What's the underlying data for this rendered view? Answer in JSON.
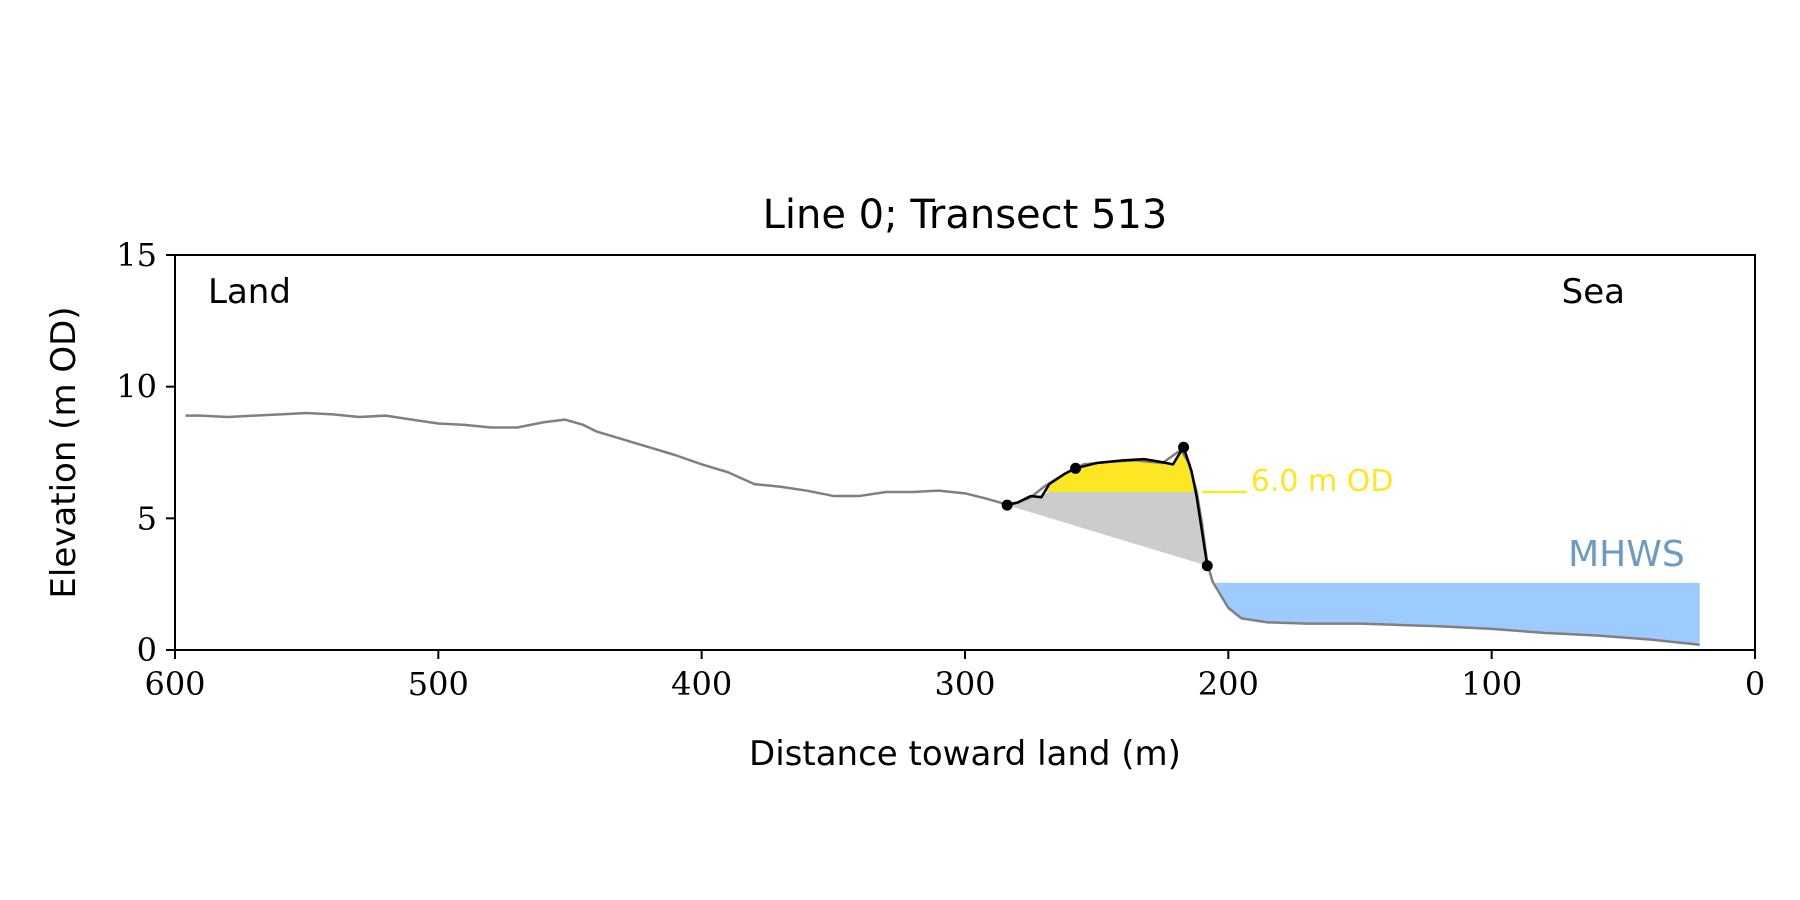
{
  "chart_data": {
    "type": "line",
    "title": "Line 0; Transect 513",
    "xlabel": "Distance toward land (m)",
    "ylabel": "Elevation (m OD)",
    "xlim": [
      600,
      0
    ],
    "ylim": [
      0,
      15
    ],
    "x_ticks": [
      600,
      500,
      400,
      300,
      200,
      100,
      0
    ],
    "y_ticks": [
      0,
      5,
      10,
      15
    ],
    "x_tick_labels": [
      "600",
      "500",
      "400",
      "300",
      "200",
      "100",
      "0"
    ],
    "y_tick_labels": [
      "0",
      "5",
      "10",
      "15"
    ],
    "grid": false,
    "annotations": {
      "land_label": "Land",
      "sea_label": "Sea",
      "threshold_label": "6.0 m OD",
      "mhws_label": "MHWS"
    },
    "threshold_elevation": 6.0,
    "threshold_line_x": [
      210,
      193
    ],
    "mhws": {
      "elevation": 2.55,
      "x_range": [
        205,
        21
      ]
    },
    "colors": {
      "profile": "#808080",
      "dune": "#000000",
      "dune_fill": "#fde725",
      "wedge_fill": "#cccccc",
      "mhws_fill": "#9ecbff",
      "mhws_text": "#6b9ac4",
      "threshold": "#fde725"
    },
    "profile": [
      [
        596,
        8.9
      ],
      [
        590,
        8.9
      ],
      [
        580,
        8.85
      ],
      [
        570,
        8.9
      ],
      [
        560,
        8.95
      ],
      [
        550,
        9.0
      ],
      [
        540,
        8.95
      ],
      [
        530,
        8.85
      ],
      [
        520,
        8.9
      ],
      [
        510,
        8.75
      ],
      [
        500,
        8.6
      ],
      [
        490,
        8.55
      ],
      [
        480,
        8.45
      ],
      [
        470,
        8.45
      ],
      [
        460,
        8.65
      ],
      [
        452,
        8.75
      ],
      [
        445,
        8.55
      ],
      [
        440,
        8.3
      ],
      [
        430,
        8.0
      ],
      [
        420,
        7.7
      ],
      [
        410,
        7.4
      ],
      [
        400,
        7.05
      ],
      [
        390,
        6.75
      ],
      [
        380,
        6.3
      ],
      [
        370,
        6.2
      ],
      [
        360,
        6.05
      ],
      [
        350,
        5.85
      ],
      [
        340,
        5.85
      ],
      [
        330,
        6.0
      ],
      [
        320,
        6.0
      ],
      [
        310,
        6.05
      ],
      [
        300,
        5.95
      ],
      [
        292,
        5.75
      ],
      [
        285,
        5.55
      ],
      [
        280,
        5.6
      ],
      [
        275,
        5.8
      ],
      [
        270,
        6.2
      ],
      [
        262,
        6.7
      ],
      [
        255,
        7.05
      ],
      [
        245,
        7.15
      ],
      [
        235,
        7.2
      ],
      [
        225,
        7.1
      ],
      [
        218,
        7.6
      ],
      [
        215,
        7.1
      ],
      [
        212,
        6.0
      ],
      [
        210,
        4.8
      ],
      [
        208,
        3.3
      ],
      [
        206,
        2.6
      ],
      [
        200,
        1.6
      ],
      [
        195,
        1.2
      ],
      [
        185,
        1.05
      ],
      [
        170,
        1.0
      ],
      [
        150,
        1.0
      ],
      [
        135,
        0.95
      ],
      [
        120,
        0.9
      ],
      [
        100,
        0.8
      ],
      [
        80,
        0.65
      ],
      [
        60,
        0.55
      ],
      [
        40,
        0.4
      ],
      [
        21,
        0.2
      ]
    ],
    "dune_segment": [
      [
        284,
        5.5
      ],
      [
        280,
        5.6
      ],
      [
        275,
        5.85
      ],
      [
        271,
        5.8
      ],
      [
        268,
        6.3
      ],
      [
        262,
        6.7
      ],
      [
        258,
        6.9
      ],
      [
        250,
        7.1
      ],
      [
        240,
        7.2
      ],
      [
        232,
        7.25
      ],
      [
        226,
        7.15
      ],
      [
        221,
        7.05
      ],
      [
        218,
        7.55
      ],
      [
        217,
        7.7
      ],
      [
        214,
        6.8
      ],
      [
        212,
        5.8
      ],
      [
        210,
        4.5
      ],
      [
        208,
        3.2
      ]
    ],
    "key_points": [
      [
        284,
        5.5
      ],
      [
        258,
        6.9
      ],
      [
        217,
        7.7
      ],
      [
        208,
        3.2
      ]
    ],
    "wedge_polygon": [
      [
        284,
        5.5
      ],
      [
        268,
        6.0
      ],
      [
        212,
        6.0
      ],
      [
        208,
        3.2
      ]
    ]
  }
}
